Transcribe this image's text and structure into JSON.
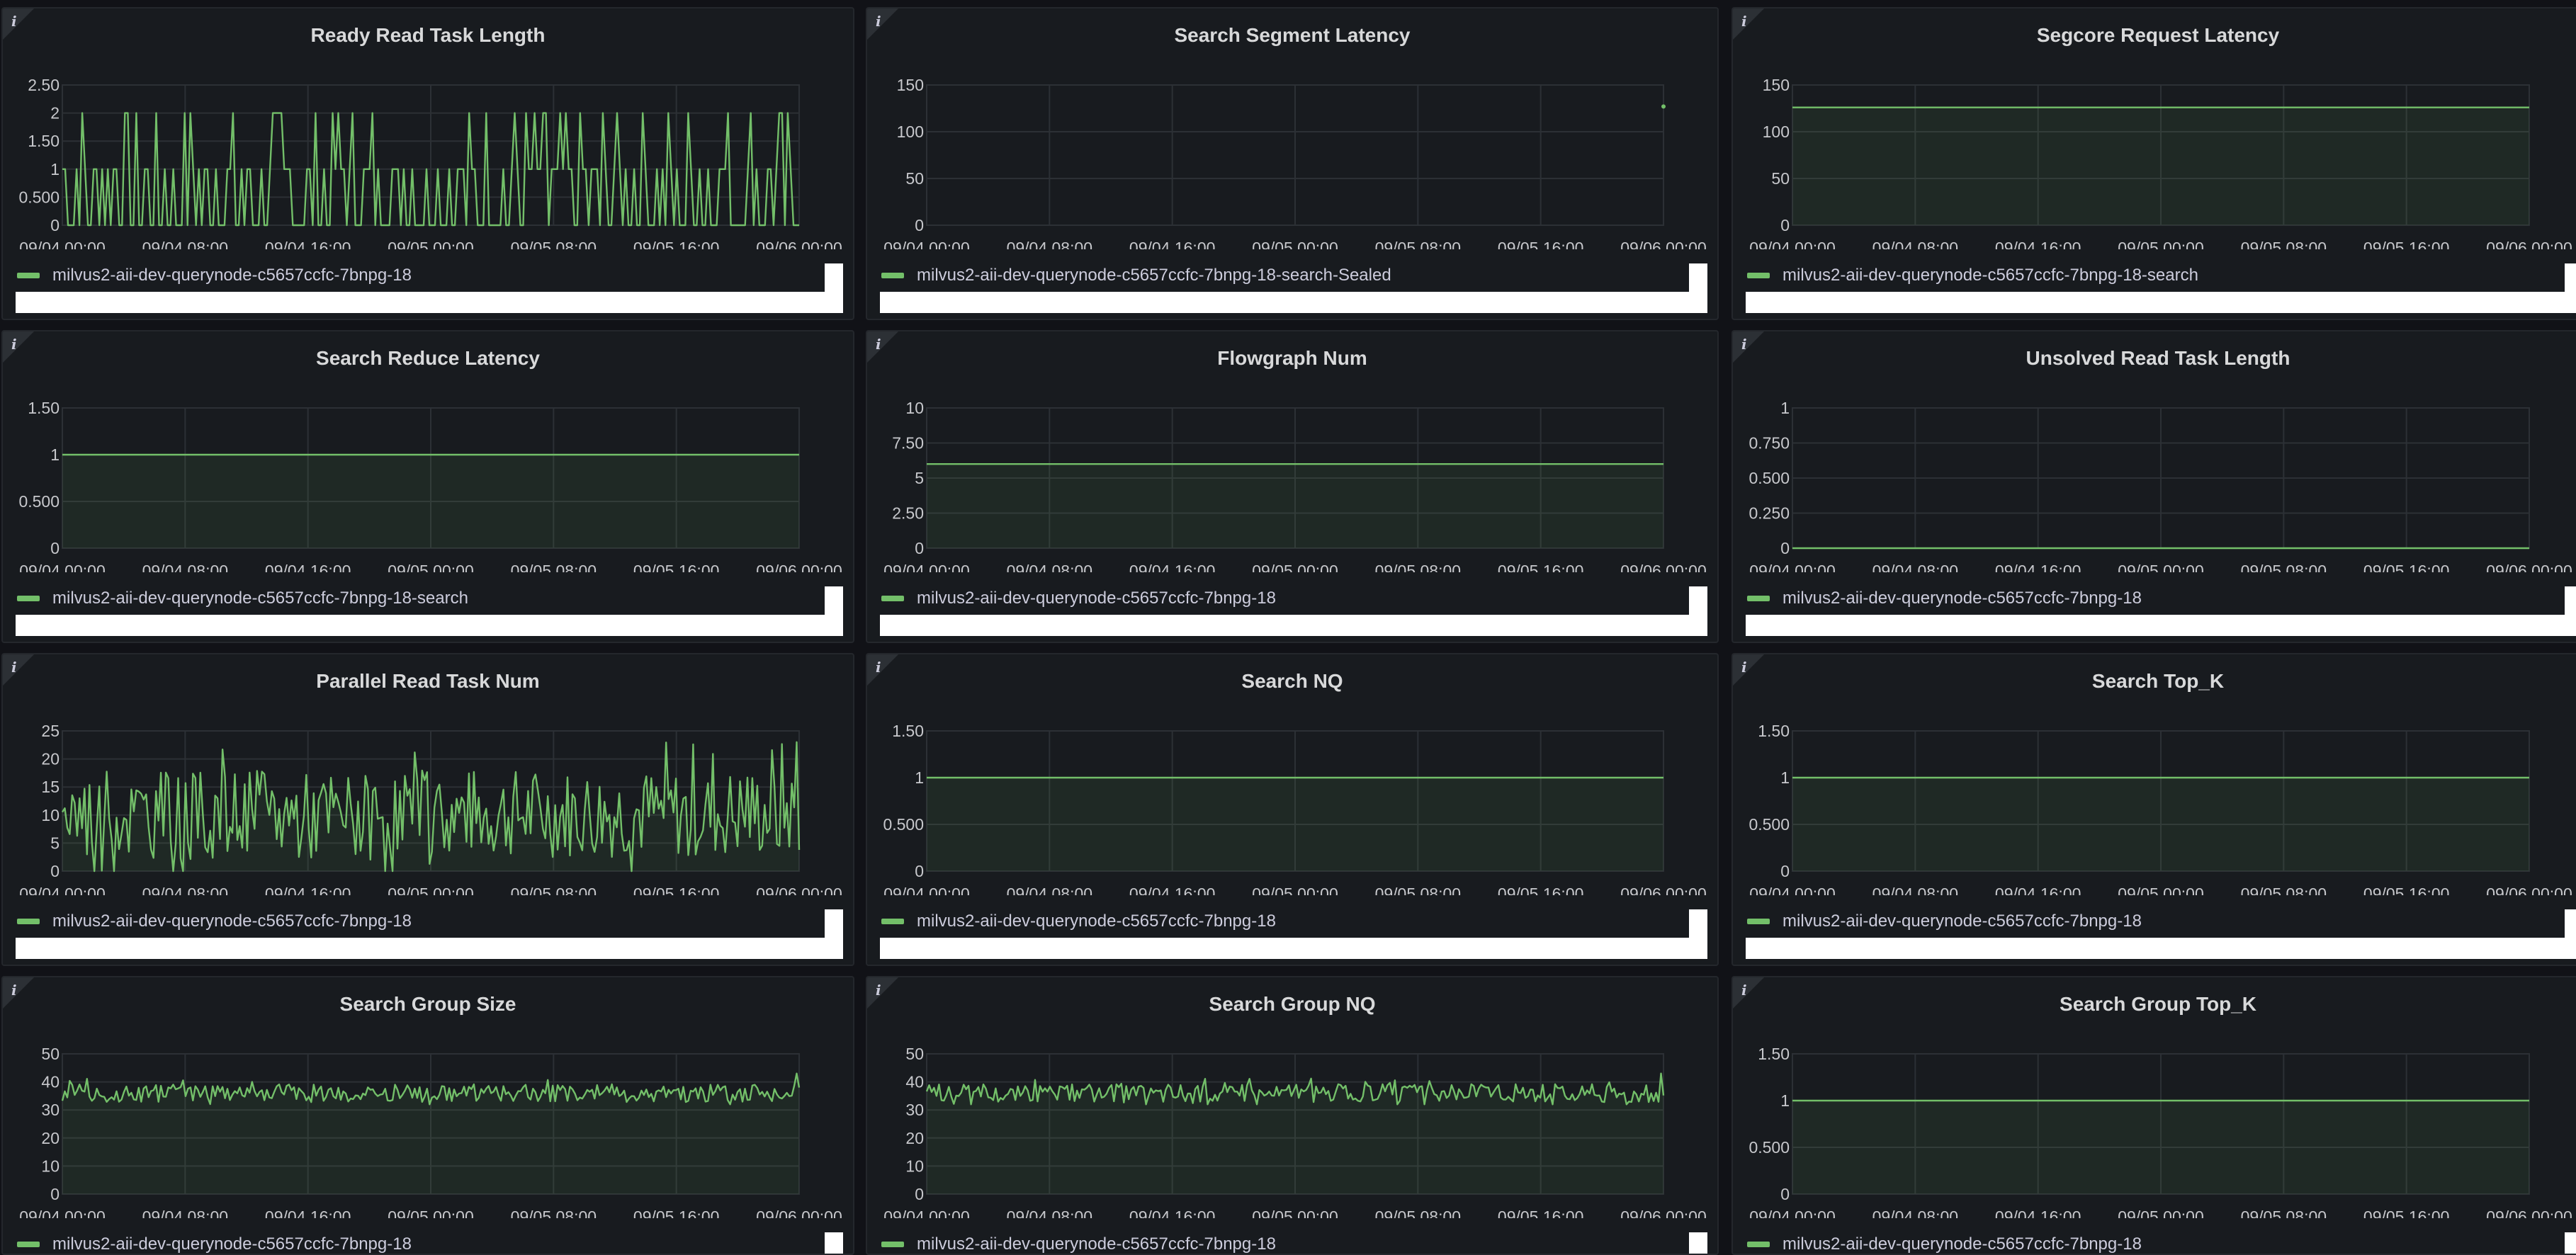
{
  "info_glyph": "i",
  "legend_color": "#73bf69",
  "x_ticks": [
    "09/04 00:00",
    "09/04 08:00",
    "09/04 16:00",
    "09/05 00:00",
    "09/05 08:00",
    "09/05 16:00",
    "09/06 00:00"
  ],
  "panels": [
    {
      "title": "Ready Read Task Length",
      "legend": "milvus2-aii-dev-querynode-c5657ccfc-7bnpg-18",
      "y_ticks": [
        "0",
        "0.500",
        "1",
        "1.50",
        "2",
        "2.50"
      ],
      "chart_data": {
        "type": "line",
        "ylim": [
          0,
          2.5
        ],
        "fill": false,
        "series": [
          {
            "name": "milvus2-aii-dev-querynode-c5657ccfc-7bnpg-18",
            "pattern": "spiky",
            "base": 0,
            "peak": 2
          }
        ]
      }
    },
    {
      "title": "Search Segment Latency",
      "legend": "milvus2-aii-dev-querynode-c5657ccfc-7bnpg-18-search-Sealed",
      "y_ticks": [
        "0",
        "50",
        "100",
        "150"
      ],
      "chart_data": {
        "type": "scatter",
        "ylim": [
          0,
          150
        ],
        "series": [
          {
            "name": "milvus2-aii-dev-querynode-c5657ccfc-7bnpg-18-search-Sealed",
            "points": [
              {
                "x": "09/06 00:00",
                "y": 127
              }
            ]
          }
        ]
      }
    },
    {
      "title": "Segcore Request Latency",
      "legend": "milvus2-aii-dev-querynode-c5657ccfc-7bnpg-18-search",
      "y_ticks": [
        "0",
        "50",
        "100",
        "150"
      ],
      "chart_data": {
        "type": "area",
        "ylim": [
          0,
          150
        ],
        "fill": true,
        "series": [
          {
            "name": "milvus2-aii-dev-querynode-c5657ccfc-7bnpg-18-search",
            "constant": 126
          }
        ]
      }
    },
    {
      "title": "Search Reduce Latency",
      "legend": "milvus2-aii-dev-querynode-c5657ccfc-7bnpg-18-search",
      "y_ticks": [
        "0",
        "0.500",
        "1",
        "1.50"
      ],
      "chart_data": {
        "type": "area",
        "ylim": [
          0,
          1.5
        ],
        "fill": true,
        "series": [
          {
            "name": "milvus2-aii-dev-querynode-c5657ccfc-7bnpg-18-search",
            "constant": 1
          }
        ]
      }
    },
    {
      "title": "Flowgraph Num",
      "legend": "milvus2-aii-dev-querynode-c5657ccfc-7bnpg-18",
      "y_ticks": [
        "0",
        "2.50",
        "5",
        "7.50",
        "10"
      ],
      "chart_data": {
        "type": "area",
        "ylim": [
          0,
          10
        ],
        "fill": true,
        "series": [
          {
            "name": "milvus2-aii-dev-querynode-c5657ccfc-7bnpg-18",
            "constant": 6
          }
        ]
      }
    },
    {
      "title": "Unsolved Read Task Length",
      "legend": "milvus2-aii-dev-querynode-c5657ccfc-7bnpg-18",
      "y_ticks": [
        "0",
        "0.250",
        "0.500",
        "0.750",
        "1"
      ],
      "chart_data": {
        "type": "line",
        "ylim": [
          0,
          1
        ],
        "fill": false,
        "series": [
          {
            "name": "milvus2-aii-dev-querynode-c5657ccfc-7bnpg-18",
            "constant": 0
          }
        ]
      }
    },
    {
      "title": "Parallel Read Task Num",
      "legend": "milvus2-aii-dev-querynode-c5657ccfc-7bnpg-18",
      "y_ticks": [
        "0",
        "5",
        "10",
        "15",
        "20",
        "25"
      ],
      "chart_data": {
        "type": "area",
        "ylim": [
          0,
          25
        ],
        "fill": true,
        "series": [
          {
            "name": "milvus2-aii-dev-querynode-c5657ccfc-7bnpg-18",
            "pattern": "noisy",
            "mean": 10,
            "amp": 10,
            "min": 0,
            "max": 23
          }
        ]
      }
    },
    {
      "title": "Search NQ",
      "legend": "milvus2-aii-dev-querynode-c5657ccfc-7bnpg-18",
      "y_ticks": [
        "0",
        "0.500",
        "1",
        "1.50"
      ],
      "chart_data": {
        "type": "area",
        "ylim": [
          0,
          1.5
        ],
        "fill": true,
        "series": [
          {
            "name": "milvus2-aii-dev-querynode-c5657ccfc-7bnpg-18",
            "constant": 1
          }
        ]
      }
    },
    {
      "title": "Search Top_K",
      "legend": "milvus2-aii-dev-querynode-c5657ccfc-7bnpg-18",
      "y_ticks": [
        "0",
        "0.500",
        "1",
        "1.50"
      ],
      "chart_data": {
        "type": "area",
        "ylim": [
          0,
          1.5
        ],
        "fill": true,
        "series": [
          {
            "name": "milvus2-aii-dev-querynode-c5657ccfc-7bnpg-18",
            "constant": 1
          }
        ]
      }
    },
    {
      "title": "Search Group Size",
      "legend": "milvus2-aii-dev-querynode-c5657ccfc-7bnpg-18",
      "y_ticks": [
        "0",
        "10",
        "20",
        "30",
        "40",
        "50"
      ],
      "chart_data": {
        "type": "area",
        "ylim": [
          0,
          50
        ],
        "fill": true,
        "series": [
          {
            "name": "milvus2-aii-dev-querynode-c5657ccfc-7bnpg-18",
            "pattern": "noisy",
            "mean": 36,
            "amp": 4,
            "min": 32,
            "max": 43
          }
        ]
      }
    },
    {
      "title": "Search Group NQ",
      "legend": "milvus2-aii-dev-querynode-c5657ccfc-7bnpg-18",
      "y_ticks": [
        "0",
        "10",
        "20",
        "30",
        "40",
        "50"
      ],
      "chart_data": {
        "type": "area",
        "ylim": [
          0,
          50
        ],
        "fill": true,
        "series": [
          {
            "name": "milvus2-aii-dev-querynode-c5657ccfc-7bnpg-18",
            "pattern": "noisy",
            "mean": 36,
            "amp": 4,
            "min": 32,
            "max": 43
          }
        ]
      }
    },
    {
      "title": "Search Group Top_K",
      "legend": "milvus2-aii-dev-querynode-c5657ccfc-7bnpg-18",
      "y_ticks": [
        "0",
        "0.500",
        "1",
        "1.50"
      ],
      "chart_data": {
        "type": "area",
        "ylim": [
          0,
          1.5
        ],
        "fill": true,
        "series": [
          {
            "name": "milvus2-aii-dev-querynode-c5657ccfc-7bnpg-18",
            "constant": 1
          }
        ]
      }
    }
  ]
}
